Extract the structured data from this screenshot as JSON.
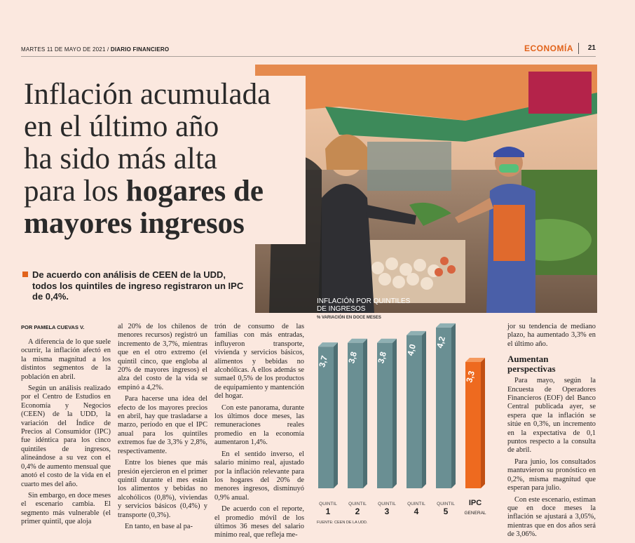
{
  "masthead": {
    "date": "MARTES 11 DE MAYO DE 2021 /",
    "paper": "DIARIO FINANCIERO",
    "section": "ECONOMÍA",
    "page": "21"
  },
  "headline": {
    "line1": "Inflación acumulada",
    "line2": "en el último año",
    "line3": "ha sido más alta",
    "line4_plain": "para los",
    "line4_bold": "hogares de",
    "line5": "mayores ingresos"
  },
  "deck": "De acuerdo con análisis de CEEN de la UDD, todos los quintiles de ingreso registraron un IPC de 0,4%.",
  "byline": "POR PAMELA CUEVAS V.",
  "column1": [
    "A diferencia de lo que suele ocurrir, la inflación afectó en la misma magnitud a los distintos segmentos de la población en abril.",
    "Según un análisis realizado por el Centro de Estudios en Economía y Negocios (CEEN) de la UDD, la variación del Índice de Precios al Consumidor (IPC) fue idéntica para los cinco quintiles de ingresos, alineándose a su vez con el 0,4% de aumento mensual que anotó el costo de la vida en el cuarto mes del año.",
    "Sin embargo, en doce meses el escenario cambia. El segmento más vulnerable (el primer quintil, que aloja"
  ],
  "column2": [
    "al 20% de los chilenos de menores recursos) registró un incremento de 3,7%, mientras que en el otro extremo (el quintil cinco, que engloba al 20% de mayores ingresos) el alza del costo de la vida se empinó a 4,2%.",
    "Para hacerse una idea del efecto de los mayores precios en abril, hay que trasladarse a marzo, período en que el IPC anual para los quintiles extremos fue de 3,3% y 2,8%, respectivamente.",
    "Entre los bienes que más presión ejercieron en el primer quintil durante el mes están los alimentos y bebidas no alcohólicos (0,8%), viviendas y servicios básicos (0,4%) y transporte (0,3%).",
    "En tanto, en base al pa-"
  ],
  "column3": [
    "trón de consumo de las familias con más entradas, influyeron transporte, vivienda y servicios básicos, alimentos y bebidas no alcohólicas. A ellos además se sumaeI 0,5% de los productos de equipamiento y mantención del hogar.",
    "Con este panorama, durante los últimos doce meses, las remuneraciones reales promedio en la economía aumentaron 1,4%.",
    "En el sentido inverso, el salario mínimo real, ajustado por la inflación relevante para los hogares del 20% de menores ingresos, disminuyó 0,9% anual.",
    "De acuerdo con el reporte, el promedio móvil de los últimos 36 meses del salario mínimo real, que refleja me-"
  ],
  "column4": {
    "top": "jor su tendencia de mediano plazo, ha aumentado 3,3% en el último año.",
    "subhead_line1": "Aumentan",
    "subhead_line2": "perspectivas",
    "paragraphs": [
      "Para mayo, según la Encuesta de Operadores Financieros (EOF) del Banco Central publicada ayer, se espera que la inflación se sitúe en 0,3%, un incremento en la expectativa de 0,1 puntos respecto a la consulta de abril.",
      "Para junio, los consultados mantuvieron su pronóstico en 0,2%, misma magnitud que esperan para julio.",
      "Con este escenario, estiman que en doce meses la inflación se ajustará a 3,05%, mientras que en dos años será de 3,06%."
    ]
  },
  "chart_data": {
    "type": "bar",
    "title_line1": "INFLACIÓN POR QUINTILES",
    "title_line2": "DE INGRESOS",
    "subtitle": "% VARIACIÓN EN DOCE MESES",
    "source": "FUENTE: CEEN DE LA UDD.",
    "categories": [
      {
        "top": "QUINTIL",
        "bottom": "1"
      },
      {
        "top": "QUINTIL",
        "bottom": "2"
      },
      {
        "top": "QUINTIL",
        "bottom": "3"
      },
      {
        "top": "QUINTIL",
        "bottom": "4"
      },
      {
        "top": "QUINTIL",
        "bottom": "5"
      },
      {
        "top": "IPC",
        "bottom": "GENERAL"
      }
    ],
    "values": [
      3.7,
      3.8,
      3.8,
      4.0,
      4.2,
      3.3
    ],
    "value_labels": [
      "3,7",
      "3,8",
      "3,8",
      "4,0",
      "4,2",
      "3,3"
    ],
    "colors": [
      "#6a8f93",
      "#6a8f93",
      "#6a8f93",
      "#6a8f93",
      "#6a8f93",
      "#ee6a1f"
    ],
    "ylim": [
      0,
      4.4
    ]
  },
  "colors": {
    "accent": "#e1631b",
    "background": "#fbe8df",
    "bar": "#6a8f93",
    "bar_highlight": "#ee6a1f"
  }
}
